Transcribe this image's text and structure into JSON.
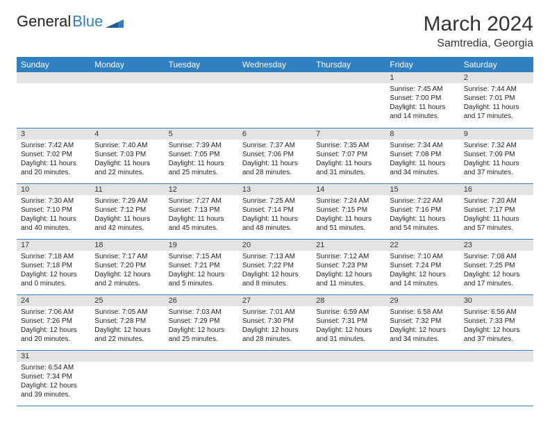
{
  "brand": {
    "part1": "General",
    "part2": "Blue"
  },
  "header": {
    "title": "March 2024",
    "location": "Samtredia, Georgia"
  },
  "colors": {
    "accent": "#2f7fc1",
    "daynum_bg": "#e3e3e3",
    "text": "#222222",
    "bg": "#ffffff"
  },
  "weekdays": [
    "Sunday",
    "Monday",
    "Tuesday",
    "Wednesday",
    "Thursday",
    "Friday",
    "Saturday"
  ],
  "grid": {
    "columns": 7,
    "rows": 6,
    "first_weekday_index": 5,
    "days_in_month": 31
  },
  "days": {
    "1": {
      "sunrise": "7:45 AM",
      "sunset": "7:00 PM",
      "daylight": "11 hours and 14 minutes."
    },
    "2": {
      "sunrise": "7:44 AM",
      "sunset": "7:01 PM",
      "daylight": "11 hours and 17 minutes."
    },
    "3": {
      "sunrise": "7:42 AM",
      "sunset": "7:02 PM",
      "daylight": "11 hours and 20 minutes."
    },
    "4": {
      "sunrise": "7:40 AM",
      "sunset": "7:03 PM",
      "daylight": "11 hours and 22 minutes."
    },
    "5": {
      "sunrise": "7:39 AM",
      "sunset": "7:05 PM",
      "daylight": "11 hours and 25 minutes."
    },
    "6": {
      "sunrise": "7:37 AM",
      "sunset": "7:06 PM",
      "daylight": "11 hours and 28 minutes."
    },
    "7": {
      "sunrise": "7:35 AM",
      "sunset": "7:07 PM",
      "daylight": "11 hours and 31 minutes."
    },
    "8": {
      "sunrise": "7:34 AM",
      "sunset": "7:08 PM",
      "daylight": "11 hours and 34 minutes."
    },
    "9": {
      "sunrise": "7:32 AM",
      "sunset": "7:09 PM",
      "daylight": "11 hours and 37 minutes."
    },
    "10": {
      "sunrise": "7:30 AM",
      "sunset": "7:10 PM",
      "daylight": "11 hours and 40 minutes."
    },
    "11": {
      "sunrise": "7:29 AM",
      "sunset": "7:12 PM",
      "daylight": "11 hours and 42 minutes."
    },
    "12": {
      "sunrise": "7:27 AM",
      "sunset": "7:13 PM",
      "daylight": "11 hours and 45 minutes."
    },
    "13": {
      "sunrise": "7:25 AM",
      "sunset": "7:14 PM",
      "daylight": "11 hours and 48 minutes."
    },
    "14": {
      "sunrise": "7:24 AM",
      "sunset": "7:15 PM",
      "daylight": "11 hours and 51 minutes."
    },
    "15": {
      "sunrise": "7:22 AM",
      "sunset": "7:16 PM",
      "daylight": "11 hours and 54 minutes."
    },
    "16": {
      "sunrise": "7:20 AM",
      "sunset": "7:17 PM",
      "daylight": "11 hours and 57 minutes."
    },
    "17": {
      "sunrise": "7:18 AM",
      "sunset": "7:18 PM",
      "daylight": "12 hours and 0 minutes."
    },
    "18": {
      "sunrise": "7:17 AM",
      "sunset": "7:20 PM",
      "daylight": "12 hours and 2 minutes."
    },
    "19": {
      "sunrise": "7:15 AM",
      "sunset": "7:21 PM",
      "daylight": "12 hours and 5 minutes."
    },
    "20": {
      "sunrise": "7:13 AM",
      "sunset": "7:22 PM",
      "daylight": "12 hours and 8 minutes."
    },
    "21": {
      "sunrise": "7:12 AM",
      "sunset": "7:23 PM",
      "daylight": "12 hours and 11 minutes."
    },
    "22": {
      "sunrise": "7:10 AM",
      "sunset": "7:24 PM",
      "daylight": "12 hours and 14 minutes."
    },
    "23": {
      "sunrise": "7:08 AM",
      "sunset": "7:25 PM",
      "daylight": "12 hours and 17 minutes."
    },
    "24": {
      "sunrise": "7:06 AM",
      "sunset": "7:26 PM",
      "daylight": "12 hours and 20 minutes."
    },
    "25": {
      "sunrise": "7:05 AM",
      "sunset": "7:28 PM",
      "daylight": "12 hours and 22 minutes."
    },
    "26": {
      "sunrise": "7:03 AM",
      "sunset": "7:29 PM",
      "daylight": "12 hours and 25 minutes."
    },
    "27": {
      "sunrise": "7:01 AM",
      "sunset": "7:30 PM",
      "daylight": "12 hours and 28 minutes."
    },
    "28": {
      "sunrise": "6:59 AM",
      "sunset": "7:31 PM",
      "daylight": "12 hours and 31 minutes."
    },
    "29": {
      "sunrise": "6:58 AM",
      "sunset": "7:32 PM",
      "daylight": "12 hours and 34 minutes."
    },
    "30": {
      "sunrise": "6:56 AM",
      "sunset": "7:33 PM",
      "daylight": "12 hours and 37 minutes."
    },
    "31": {
      "sunrise": "6:54 AM",
      "sunset": "7:34 PM",
      "daylight": "12 hours and 39 minutes."
    }
  },
  "labels": {
    "sunrise_prefix": "Sunrise: ",
    "sunset_prefix": "Sunset: ",
    "daylight_prefix": "Daylight: "
  }
}
